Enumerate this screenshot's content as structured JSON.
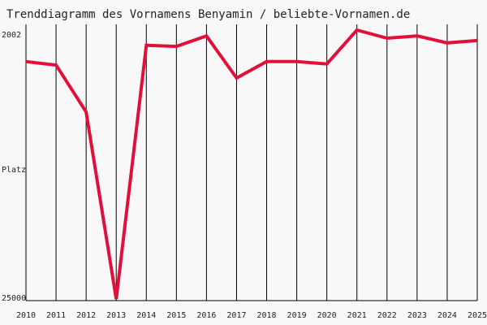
{
  "chart_data": {
    "type": "line",
    "title": "Trenddiagramm des Vornamens Benyamin / beliebte-Vornamen.de",
    "ylabel": "Platz",
    "y_top_label": "2002",
    "y_bottom_label": "25000",
    "y_axis_inverted": true,
    "ylim": [
      2002,
      25000
    ],
    "x": [
      2010,
      2011,
      2012,
      2013,
      2014,
      2015,
      2016,
      2017,
      2018,
      2019,
      2020,
      2021,
      2022,
      2023,
      2024,
      2025
    ],
    "grid": "vertical",
    "series": [
      {
        "color": "#e0103a",
        "values": [
          4700,
          5000,
          9000,
          25000,
          3300,
          3400,
          2500,
          6100,
          4700,
          4700,
          4900,
          2000,
          2700,
          2500,
          3100,
          2900
        ]
      }
    ]
  }
}
